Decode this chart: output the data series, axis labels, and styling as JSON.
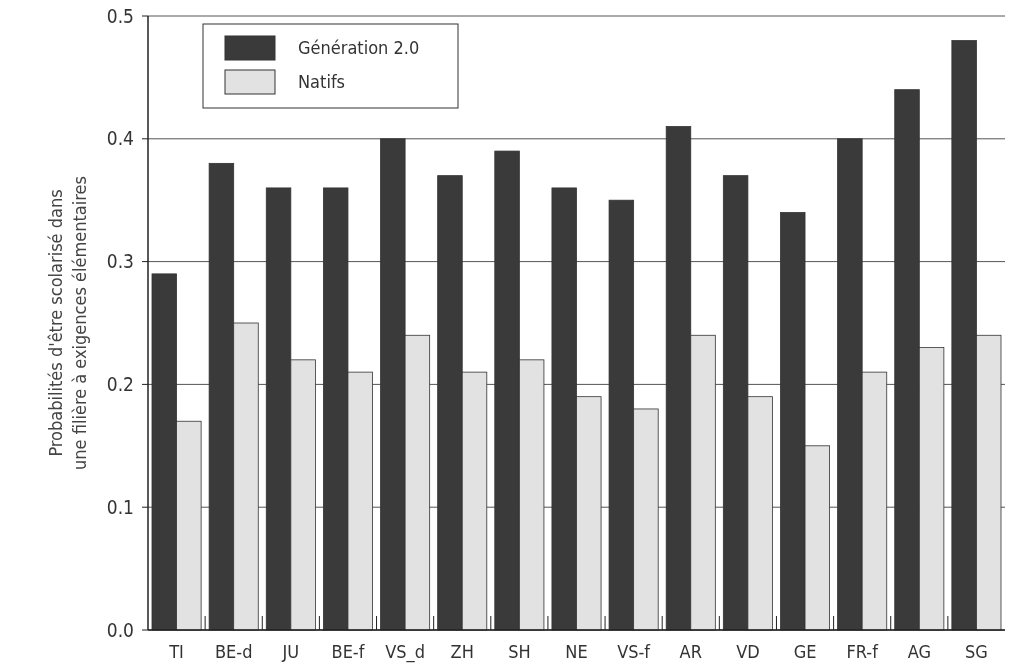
{
  "chart_data": {
    "type": "bar",
    "ylabel": "Probabilités d'être scolarisé dans une filière à exigences élémentaires",
    "categories": [
      "TI",
      "BE-d",
      "JU",
      "BE-f",
      "VS_d",
      "ZH",
      "SH",
      "NE",
      "VS-f",
      "AR",
      "VD",
      "GE",
      "FR-f",
      "AG",
      "SG"
    ],
    "series": [
      {
        "name": "Génération 2.0",
        "color": "#3a3a3a",
        "values": [
          0.29,
          0.38,
          0.36,
          0.36,
          0.4,
          0.37,
          0.39,
          0.36,
          0.35,
          0.41,
          0.37,
          0.34,
          0.4,
          0.44,
          0.48
        ]
      },
      {
        "name": "Natifs",
        "color": "#e2e2e2",
        "values": [
          0.17,
          0.25,
          0.22,
          0.21,
          0.24,
          0.21,
          0.22,
          0.19,
          0.18,
          0.24,
          0.19,
          0.15,
          0.21,
          0.23,
          0.24
        ]
      }
    ],
    "ylim": [
      0,
      0.5
    ],
    "yticks": [
      {
        "value": 0,
        "label": "0.0"
      },
      {
        "value": 0.1,
        "label": "0.1"
      },
      {
        "value": 0.2,
        "label": "0.2"
      },
      {
        "value": 0.3,
        "label": "0.3"
      },
      {
        "value": 0.4,
        "label": "0.4"
      },
      {
        "value": 0.5,
        "label": "0.5"
      }
    ],
    "grid": "y",
    "legend": "top left"
  }
}
